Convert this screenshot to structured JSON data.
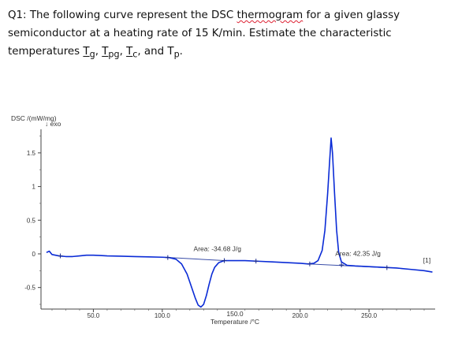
{
  "question": {
    "line1_pre": "Q1: The following curve represent the DSC ",
    "line1_word": "thermogram",
    "line1_post": " for a given  glassy",
    "line2": "semiconductor  at a heating rate of 15 K/min. Estimate the characteristic",
    "line3_pre": "temperatures ",
    "t1": "T",
    "t1_sub": "g",
    "sep1": ", ",
    "t2": "T",
    "t2_sub": "pg",
    "sep2": ", ",
    "t3": "T",
    "t3_sub": "c",
    "sep3": ", and ",
    "t4": "T",
    "t4_sub": "p",
    "end": "."
  },
  "chart_data": {
    "type": "line",
    "ylabel": "DSC /(mW/mg)",
    "ylabel_sub": "↓ exo",
    "xlabel_value": "150.0",
    "xlabel": "Temperature /°C",
    "xlim": [
      12,
      298
    ],
    "ylim": [
      -0.82,
      1.85
    ],
    "x_ticks": [
      {
        "value": 50,
        "label": "50.0"
      },
      {
        "value": 100,
        "label": "100.0"
      },
      {
        "value": 200,
        "label": "200.0"
      },
      {
        "value": 250,
        "label": "250.0"
      }
    ],
    "y_ticks": [
      {
        "value": 1.5,
        "label": "1.5"
      },
      {
        "value": 1.0,
        "label": "1"
      },
      {
        "value": 0.5,
        "label": "0.5"
      },
      {
        "value": 0,
        "label": "0"
      },
      {
        "value": -0.5,
        "label": "-0.5"
      }
    ],
    "series": [
      {
        "color": "#0a2bd6",
        "points": [
          [
            16,
            0.02
          ],
          [
            18,
            0.04
          ],
          [
            20,
            -0.01
          ],
          [
            25,
            -0.03
          ],
          [
            30,
            -0.04
          ],
          [
            35,
            -0.04
          ],
          [
            40,
            -0.03
          ],
          [
            45,
            -0.02
          ],
          [
            50,
            -0.02
          ],
          [
            55,
            -0.025
          ],
          [
            60,
            -0.03
          ],
          [
            70,
            -0.035
          ],
          [
            80,
            -0.04
          ],
          [
            90,
            -0.045
          ],
          [
            100,
            -0.05
          ],
          [
            105,
            -0.055
          ],
          [
            110,
            -0.08
          ],
          [
            114,
            -0.15
          ],
          [
            118,
            -0.3
          ],
          [
            121,
            -0.48
          ],
          [
            124,
            -0.66
          ],
          [
            126,
            -0.76
          ],
          [
            128,
            -0.79
          ],
          [
            130,
            -0.75
          ],
          [
            132,
            -0.62
          ],
          [
            134,
            -0.45
          ],
          [
            136,
            -0.3
          ],
          [
            138,
            -0.2
          ],
          [
            141,
            -0.13
          ],
          [
            145,
            -0.1
          ],
          [
            150,
            -0.1
          ],
          [
            160,
            -0.1
          ],
          [
            170,
            -0.11
          ],
          [
            180,
            -0.12
          ],
          [
            190,
            -0.13
          ],
          [
            200,
            -0.14
          ],
          [
            206,
            -0.15
          ],
          [
            210,
            -0.14
          ],
          [
            213,
            -0.1
          ],
          [
            216,
            0.05
          ],
          [
            218,
            0.35
          ],
          [
            220,
            0.9
          ],
          [
            221.5,
            1.4
          ],
          [
            222.5,
            1.72
          ],
          [
            223.5,
            1.5
          ],
          [
            225,
            0.9
          ],
          [
            226.5,
            0.35
          ],
          [
            228,
            0.02
          ],
          [
            230,
            -0.12
          ],
          [
            234,
            -0.17
          ],
          [
            240,
            -0.18
          ],
          [
            250,
            -0.19
          ],
          [
            260,
            -0.2
          ],
          [
            270,
            -0.21
          ],
          [
            280,
            -0.23
          ],
          [
            290,
            -0.25
          ],
          [
            296,
            -0.27
          ]
        ]
      }
    ],
    "baselines": [
      {
        "from": [
          105,
          -0.055
        ],
        "to": [
          145,
          -0.1
        ]
      },
      {
        "from": [
          206,
          -0.15
        ],
        "to": [
          262,
          -0.205
        ]
      }
    ],
    "markers": [
      [
        26,
        -0.03
      ],
      [
        104,
        -0.055
      ],
      [
        145,
        -0.1
      ],
      [
        168,
        -0.108
      ],
      [
        207,
        -0.15
      ],
      [
        230,
        -0.165
      ],
      [
        263,
        -0.205
      ]
    ],
    "annotations": [
      {
        "text": "Area: -34.68 J/g",
        "x": 140,
        "y": 0.04
      },
      {
        "text": "Area: 42.35 J/g",
        "x": 242,
        "y": -0.03
      },
      {
        "text": "[1]",
        "x": 292,
        "y": -0.13
      }
    ]
  }
}
